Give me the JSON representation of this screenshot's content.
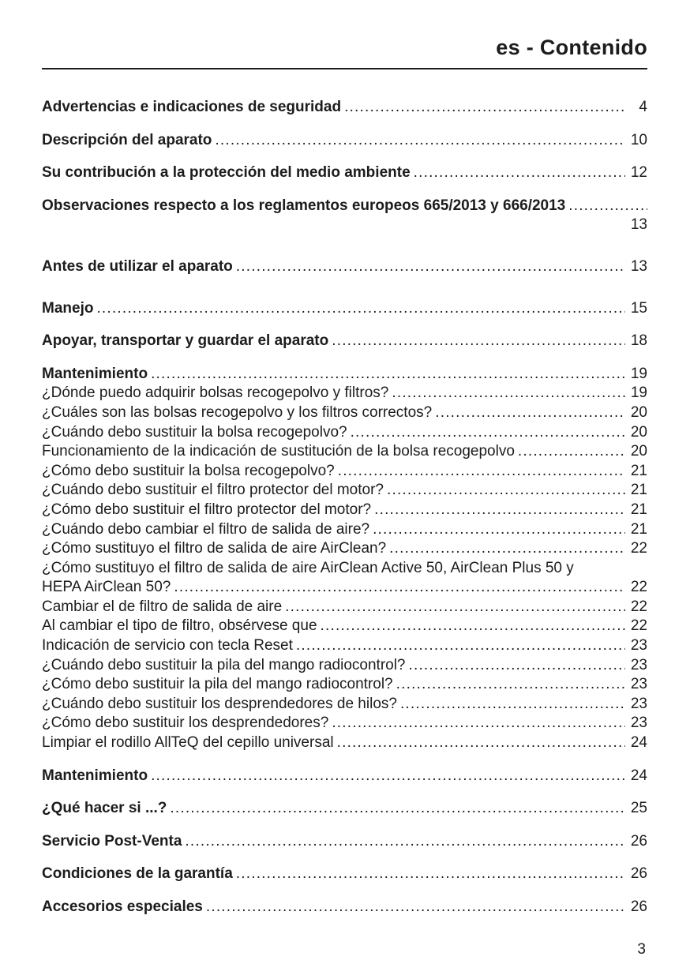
{
  "header": {
    "title": "es - Contenido"
  },
  "toc": {
    "entries": [
      {
        "label": "Advertencias e indicaciones de seguridad",
        "page": "4",
        "bold": true,
        "gap": "section"
      },
      {
        "label": "Descripción del aparato",
        "page": "10",
        "bold": true,
        "gap": "section"
      },
      {
        "label": "Su contribución a la protección del medio ambiente",
        "page": "12",
        "bold": true,
        "gap": "section"
      },
      {
        "label": "Observaciones respecto a los reglamentos europeos 665/2013 y 666/2013",
        "page": "13",
        "bold": true,
        "gap": "section",
        "wrap_page": true
      },
      {
        "label": "Antes de utilizar el aparato",
        "page": "13",
        "bold": true,
        "gap": "section-lg"
      },
      {
        "label": "Manejo",
        "page": "15",
        "bold": true,
        "gap": "section-lg"
      },
      {
        "label": "Apoyar, transportar y guardar el aparato",
        "page": "18",
        "bold": true,
        "gap": "section"
      },
      {
        "label": "Mantenimiento",
        "page": "19",
        "bold": true,
        "gap": "section"
      },
      {
        "label": "¿Dónde puedo adquirir bolsas recogepolvo y filtros?",
        "page": "19"
      },
      {
        "label": "¿Cuáles son las bolsas recogepolvo y los filtros correctos?",
        "page": "20"
      },
      {
        "label": "¿Cuándo debo sustituir la bolsa recogepolvo?",
        "page": "20"
      },
      {
        "label": "Funcionamiento de la indicación de sustitución de la bolsa recogepolvo",
        "page": "20"
      },
      {
        "label": "¿Cómo debo sustituir la bolsa recogepolvo?",
        "page": "21"
      },
      {
        "label": "¿Cuándo debo sustituir el filtro protector del motor?",
        "page": "21"
      },
      {
        "label": "¿Cómo debo sustituir el filtro protector del motor?",
        "page": "21"
      },
      {
        "label": "¿Cuándo debo cambiar el filtro de salida de aire?",
        "page": "21"
      },
      {
        "label": "¿Cómo sustituyo el filtro de salida de aire AirClean?",
        "page": "22"
      },
      {
        "label": "¿Cómo sustituyo el filtro de salida de aire AirClean Active 50, AirClean Plus 50 y",
        "label2": "HEPA AirClean 50?",
        "page": "22"
      },
      {
        "label": "Cambiar el de filtro de salida de aire",
        "page": "22"
      },
      {
        "label": "Al cambiar el tipo de filtro, obsérvese que",
        "page": "22"
      },
      {
        "label": "Indicación de servicio con tecla Reset",
        "page": "23"
      },
      {
        "label": "¿Cuándo debo sustituir la pila del mango radiocontrol?",
        "page": "23"
      },
      {
        "label": "¿Cómo debo sustituir la pila del mango radiocontrol?",
        "page": "23"
      },
      {
        "label": "¿Cuándo debo sustituir los desprendedores de hilos?",
        "page": "23"
      },
      {
        "label": "¿Cómo debo sustituir los desprendedores?",
        "page": "23"
      },
      {
        "label": "Limpiar el rodillo AllTeQ del cepillo universal",
        "page": "24"
      },
      {
        "label": "Mantenimiento",
        "page": "24",
        "bold": true,
        "gap": "section"
      },
      {
        "label": "¿Qué hacer si ...?",
        "page": "25",
        "bold": true,
        "gap": "section"
      },
      {
        "label": "Servicio Post-Venta",
        "page": "26",
        "bold": true,
        "gap": "section"
      },
      {
        "label": "Condiciones de la garantía",
        "page": "26",
        "bold": true,
        "gap": "section"
      },
      {
        "label": "Accesorios especiales",
        "page": "26",
        "bold": true,
        "gap": "section"
      }
    ]
  },
  "footer": {
    "page_number": "3"
  }
}
